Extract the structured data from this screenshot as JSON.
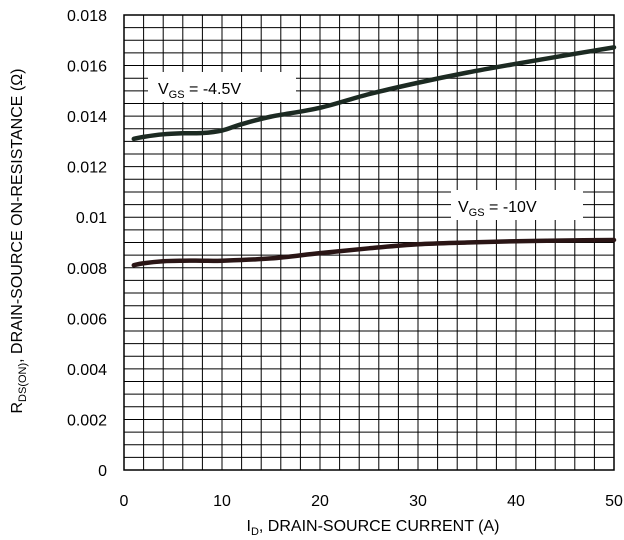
{
  "chart_data": {
    "type": "line",
    "xlabel": {
      "main": "I",
      "sub": "D",
      "rest": ", DRAIN-SOURCE CURRENT (A)"
    },
    "ylabel": {
      "main": "R",
      "sub": "DS(ON)",
      "rest": ", DRAIN-SOURCE ON-RESISTANCE (Ω)"
    },
    "xlim": [
      0,
      50
    ],
    "ylim": [
      0,
      0.018
    ],
    "xticks": [
      "0",
      "10",
      "20",
      "30",
      "40",
      "50"
    ],
    "yticks": [
      "0",
      "0.002",
      "0.004",
      "0.006",
      "0.008",
      "0.01",
      "0.012",
      "0.014",
      "0.016",
      "0.018"
    ],
    "grid": true,
    "series": [
      {
        "label": {
          "main": "V",
          "sub": "GS",
          "rest": " = -4.5V"
        },
        "color": "#1c2a22",
        "x": [
          1,
          2,
          4,
          6,
          8,
          10,
          12,
          15,
          20,
          25,
          30,
          35,
          40,
          45,
          50
        ],
        "y": [
          0.0131,
          0.01318,
          0.01328,
          0.01332,
          0.01333,
          0.01343,
          0.01368,
          0.01398,
          0.01433,
          0.01487,
          0.01532,
          0.01572,
          0.01607,
          0.0164,
          0.01672
        ]
      },
      {
        "label": {
          "main": "V",
          "sub": "GS",
          "rest": " = -10V"
        },
        "color": "#2a1515",
        "x": [
          1,
          2,
          4,
          6,
          8,
          10,
          15,
          20,
          25,
          30,
          35,
          40,
          45,
          50
        ],
        "y": [
          0.0081,
          0.00818,
          0.00826,
          0.00828,
          0.00828,
          0.00828,
          0.00837,
          0.00858,
          0.00877,
          0.00893,
          0.009,
          0.00905,
          0.00908,
          0.0091
        ]
      }
    ]
  }
}
